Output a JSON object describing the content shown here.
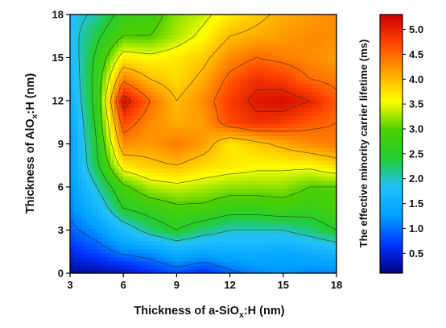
{
  "chart_data": {
    "type": "heatmap",
    "subtype": "filled-contour",
    "xlabel": {
      "main": "Thickness of a-SiO",
      "sub": "x",
      "tail": ":H (nm)"
    },
    "ylabel": {
      "main": "Thickness of AlO",
      "sub": "x",
      "tail": ":H (nm)"
    },
    "colorbar_label": "The effective minority carrier lifetime (ms)",
    "xlim": [
      3,
      18
    ],
    "ylim": [
      0,
      18
    ],
    "x_ticks": [
      3,
      6,
      9,
      12,
      15,
      18
    ],
    "y_ticks": [
      0,
      3,
      6,
      9,
      12,
      15,
      18
    ],
    "colorbar_range": [
      0.1,
      5.3
    ],
    "colorbar_ticks": [
      "0.5",
      "1.0",
      "1.5",
      "2.0",
      "2.5",
      "3.0",
      "3.5",
      "4.0",
      "4.5",
      "5.0"
    ],
    "colormap": [
      "#00007f",
      "#0033ff",
      "#00a0ff",
      "#22c0ff",
      "#22cc33",
      "#4cd000",
      "#ffff00",
      "#ffa500",
      "#ff4500",
      "#cc0000"
    ],
    "grid": false,
    "x": [
      3,
      4.5,
      6,
      7.5,
      9,
      10.5,
      12,
      13.5,
      15,
      16.5,
      18
    ],
    "y": [
      0,
      1.5,
      3,
      4.5,
      6,
      7.5,
      9,
      10.5,
      12,
      13.5,
      15,
      16.5,
      18
    ],
    "z": [
      [
        0.2,
        0.25,
        0.35,
        0.6,
        0.8,
        0.6,
        0.9,
        1.1,
        1.2,
        1.1,
        1.1
      ],
      [
        0.6,
        0.8,
        1.1,
        1.2,
        1.5,
        1.4,
        1.5,
        1.5,
        1.4,
        1.5,
        1.6
      ],
      [
        0.9,
        1.2,
        1.7,
        2.2,
        2.5,
        2.2,
        2.0,
        2.0,
        2.0,
        2.2,
        2.5
      ],
      [
        1.1,
        1.6,
        2.5,
        2.7,
        2.9,
        2.9,
        2.7,
        2.7,
        2.8,
        2.7,
        2.9
      ],
      [
        1.2,
        2.0,
        2.9,
        3.3,
        3.4,
        3.3,
        3.2,
        3.2,
        3.2,
        3.0,
        3.0
      ],
      [
        1.3,
        2.4,
        3.7,
        3.9,
        4.0,
        3.8,
        3.7,
        3.6,
        3.6,
        3.6,
        3.8
      ],
      [
        1.3,
        2.5,
        4.3,
        4.2,
        4.4,
        4.2,
        3.7,
        3.9,
        4.1,
        4.3,
        4.4
      ],
      [
        1.4,
        2.6,
        4.7,
        4.3,
        4.1,
        4.2,
        4.7,
        4.9,
        4.8,
        4.6,
        4.5
      ],
      [
        1.5,
        2.7,
        5.2,
        4.5,
        4.0,
        4.3,
        4.8,
        5.1,
        5.2,
        5.0,
        4.6
      ],
      [
        1.6,
        2.7,
        4.4,
        4.0,
        3.8,
        4.1,
        4.6,
        4.9,
        4.8,
        4.5,
        4.4
      ],
      [
        1.7,
        2.6,
        3.7,
        3.6,
        3.7,
        3.9,
        4.3,
        4.5,
        4.4,
        4.3,
        4.2
      ],
      [
        1.8,
        2.4,
        3.0,
        3.0,
        3.3,
        3.6,
        4.0,
        4.1,
        4.2,
        4.3,
        4.3
      ],
      [
        1.8,
        2.1,
        2.7,
        2.8,
        3.2,
        3.4,
        3.7,
        3.9,
        4.1,
        4.2,
        4.3
      ]
    ],
    "contour_levels": [
      1.0,
      2.0,
      2.5,
      3.0,
      3.5,
      4.0,
      4.5,
      5.0
    ]
  }
}
